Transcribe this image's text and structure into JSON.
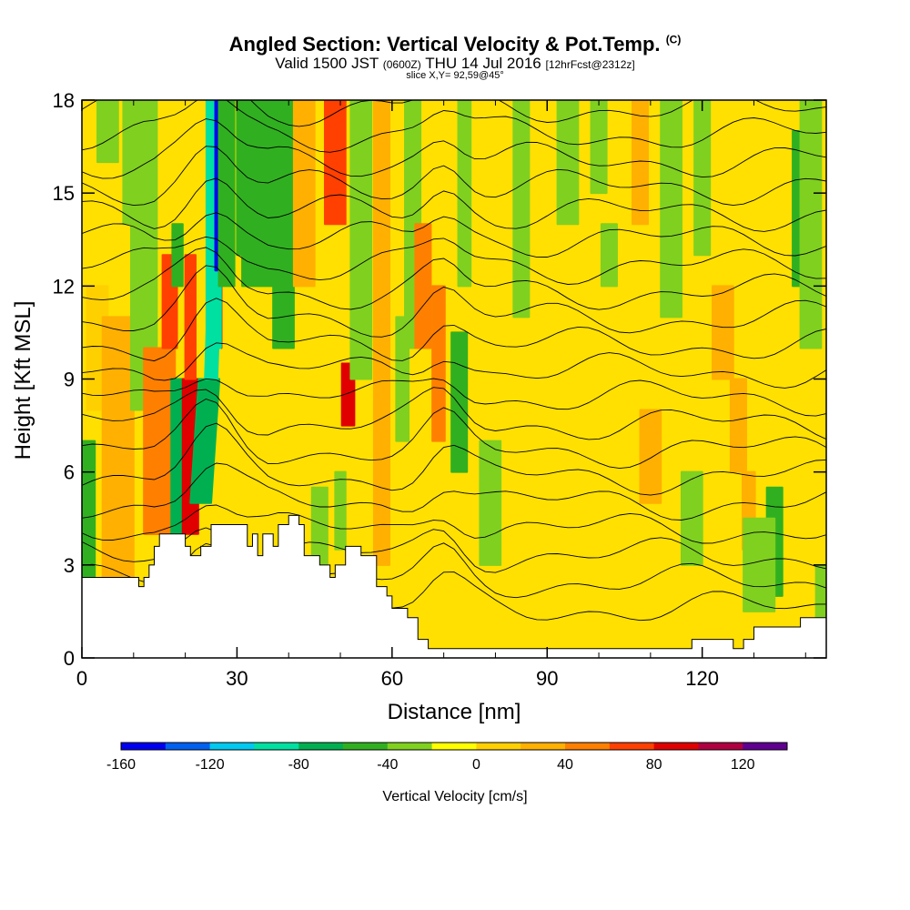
{
  "title": {
    "main": "Angled Section: Vertical Velocity & Pot.Temp.",
    "main_unit": "(C)",
    "valid_prefix": "Valid 1500 JST",
    "valid_utc": "(0600Z)",
    "valid_date": "THU 14 Jul 2016",
    "forecast": "[12hrFcst@2312z]",
    "slice": "slice X,Y= 92,59@45°"
  },
  "chart_data": {
    "type": "heatmap",
    "xlabel": "Distance [nm]",
    "ylabel": "Height [Kft MSL]",
    "xlim": [
      0,
      144
    ],
    "ylim": [
      0,
      18
    ],
    "x_ticks": [
      "0",
      "30",
      "60",
      "90",
      "120"
    ],
    "y_ticks": [
      "0",
      "3",
      "6",
      "9",
      "12",
      "15",
      "18"
    ],
    "colorbar": {
      "label": "Vertical Velocity [cm/s]",
      "ticks": [
        "-160",
        "-120",
        "-80",
        "-40",
        "0",
        "40",
        "80",
        "120"
      ],
      "range": [
        -160,
        140
      ],
      "step": 20,
      "colors": [
        "#0000f0",
        "#0060f0",
        "#00c8f0",
        "#00e0a0",
        "#00b050",
        "#30b020",
        "#80d020",
        "#ffff00",
        "#ffd000",
        "#ffb000",
        "#ff8000",
        "#ff4000",
        "#e00000",
        "#b00040",
        "#600090"
      ]
    },
    "terrain_kft": [
      [
        0,
        2.6
      ],
      [
        10,
        2.6
      ],
      [
        11,
        2.3
      ],
      [
        12,
        2.6
      ],
      [
        13,
        3.0
      ],
      [
        14,
        3.6
      ],
      [
        15,
        4.0
      ],
      [
        19,
        4.0
      ],
      [
        20,
        3.6
      ],
      [
        21,
        3.3
      ],
      [
        23,
        3.6
      ],
      [
        25,
        4.3
      ],
      [
        30,
        4.3
      ],
      [
        32,
        3.6
      ],
      [
        33,
        4.0
      ],
      [
        34,
        3.3
      ],
      [
        35,
        4.0
      ],
      [
        37,
        3.6
      ],
      [
        38,
        4.3
      ],
      [
        40,
        4.6
      ],
      [
        42,
        4.3
      ],
      [
        43,
        3.3
      ],
      [
        46,
        3.0
      ],
      [
        48,
        2.6
      ],
      [
        49,
        3.0
      ],
      [
        51,
        3.6
      ],
      [
        53,
        3.6
      ],
      [
        54,
        3.3
      ],
      [
        57,
        2.3
      ],
      [
        59,
        2.0
      ],
      [
        60,
        1.6
      ],
      [
        62,
        1.6
      ],
      [
        63,
        1.3
      ],
      [
        65,
        0.6
      ],
      [
        67,
        0.3
      ],
      [
        74,
        0.3
      ],
      [
        76,
        0.3
      ],
      [
        115,
        0.3
      ],
      [
        118,
        0.6
      ],
      [
        124,
        0.6
      ],
      [
        125,
        0.6
      ],
      [
        126,
        0.3
      ],
      [
        128,
        0.6
      ],
      [
        130,
        1.0
      ],
      [
        138,
        1.0
      ],
      [
        139,
        1.3
      ],
      [
        144,
        1.3
      ]
    ]
  }
}
